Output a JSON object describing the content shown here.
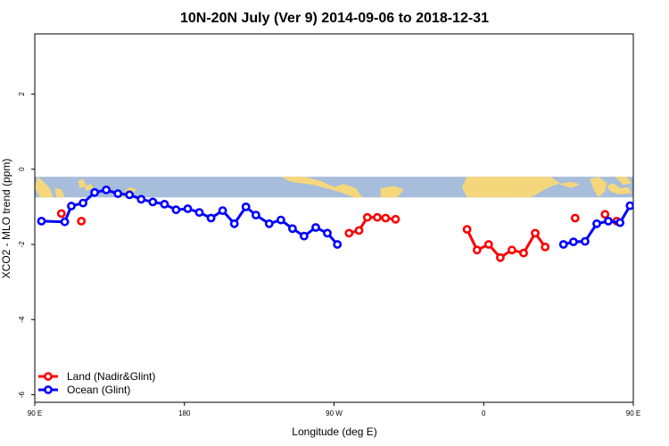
{
  "chart_data": {
    "type": "line",
    "title": "10N-20N July (Ver 9)   2014-09-06 to 2018-12-31",
    "xlabel": "Longitude (deg E)",
    "ylabel": "XCO2 - MLO trend (ppm)",
    "xlim": [
      90,
      450
    ],
    "ylim": [
      -6.2,
      3.6
    ],
    "x_ticks": [
      {
        "value": 90,
        "label": "90 E"
      },
      {
        "value": 180,
        "label": "180"
      },
      {
        "value": 270,
        "label": "90 W"
      },
      {
        "value": 360,
        "label": "0"
      },
      {
        "value": 450,
        "label": "90 E"
      }
    ],
    "x_tick_marks": [
      90,
      180,
      270,
      360,
      450
    ],
    "y_ticks": [
      {
        "value": -6,
        "label": "-6"
      },
      {
        "value": -4,
        "label": "-4"
      },
      {
        "value": -2,
        "label": "-2"
      },
      {
        "value": 0,
        "label": "0"
      },
      {
        "value": 2,
        "label": "2"
      }
    ],
    "map_strip": {
      "y_top": -0.2,
      "y_bottom": -0.75,
      "ocean_color": "#a6bddb",
      "land_color": "#f5d77b"
    },
    "legend_position": "bottom-left",
    "grid": false,
    "series": [
      {
        "name": "Land (Nadir&Glint)",
        "color": "#ff0000",
        "segments": [
          [
            [
              106,
              -1.18
            ]
          ],
          [
            [
              118,
              -1.38
            ]
          ],
          [
            [
              279,
              -1.7
            ],
            [
              285,
              -1.63
            ],
            [
              290,
              -1.28
            ],
            [
              296,
              -1.28
            ],
            [
              301,
              -1.3
            ],
            [
              307,
              -1.33
            ]
          ],
          [
            [
              350,
              -1.6
            ],
            [
              356,
              -2.15
            ],
            [
              363,
              -2.0
            ],
            [
              370,
              -2.35
            ],
            [
              377,
              -2.15
            ],
            [
              384,
              -2.23
            ],
            [
              391,
              -1.7
            ],
            [
              397,
              -2.07
            ]
          ],
          [
            [
              415,
              -1.3
            ]
          ],
          [
            [
              433,
              -1.2
            ]
          ],
          [
            [
              440,
              -1.38
            ]
          ]
        ]
      },
      {
        "name": "Ocean (Glint)",
        "color": "#0000ff",
        "segments": [
          [
            [
              94,
              -1.38
            ],
            [
              108,
              -1.4
            ],
            [
              112,
              -0.98
            ],
            [
              119,
              -0.9
            ],
            [
              126,
              -0.62
            ],
            [
              133,
              -0.55
            ],
            [
              140,
              -0.65
            ],
            [
              147,
              -0.68
            ],
            [
              154,
              -0.8
            ],
            [
              161,
              -0.87
            ],
            [
              168,
              -0.93
            ],
            [
              175,
              -1.08
            ],
            [
              182,
              -1.05
            ],
            [
              189,
              -1.15
            ],
            [
              196,
              -1.3
            ],
            [
              203,
              -1.1
            ],
            [
              210,
              -1.45
            ],
            [
              217,
              -1.0
            ],
            [
              223,
              -1.22
            ],
            [
              231,
              -1.45
            ],
            [
              238,
              -1.35
            ],
            [
              245,
              -1.58
            ],
            [
              252,
              -1.78
            ],
            [
              259,
              -1.55
            ],
            [
              266,
              -1.7
            ],
            [
              272,
              -2.0
            ]
          ],
          [
            [
              408,
              -2.0
            ],
            [
              414,
              -1.93
            ],
            [
              421,
              -1.92
            ],
            [
              428,
              -1.45
            ],
            [
              435,
              -1.38
            ],
            [
              442,
              -1.42
            ],
            [
              448,
              -0.97
            ],
            [
              455,
              -0.9
            ],
            [
              462,
              -0.65
            ],
            [
              469,
              -0.55
            ],
            [
              476,
              -0.65
            ],
            [
              483,
              -0.68
            ],
            [
              490,
              -0.78
            ]
          ]
        ]
      }
    ]
  }
}
